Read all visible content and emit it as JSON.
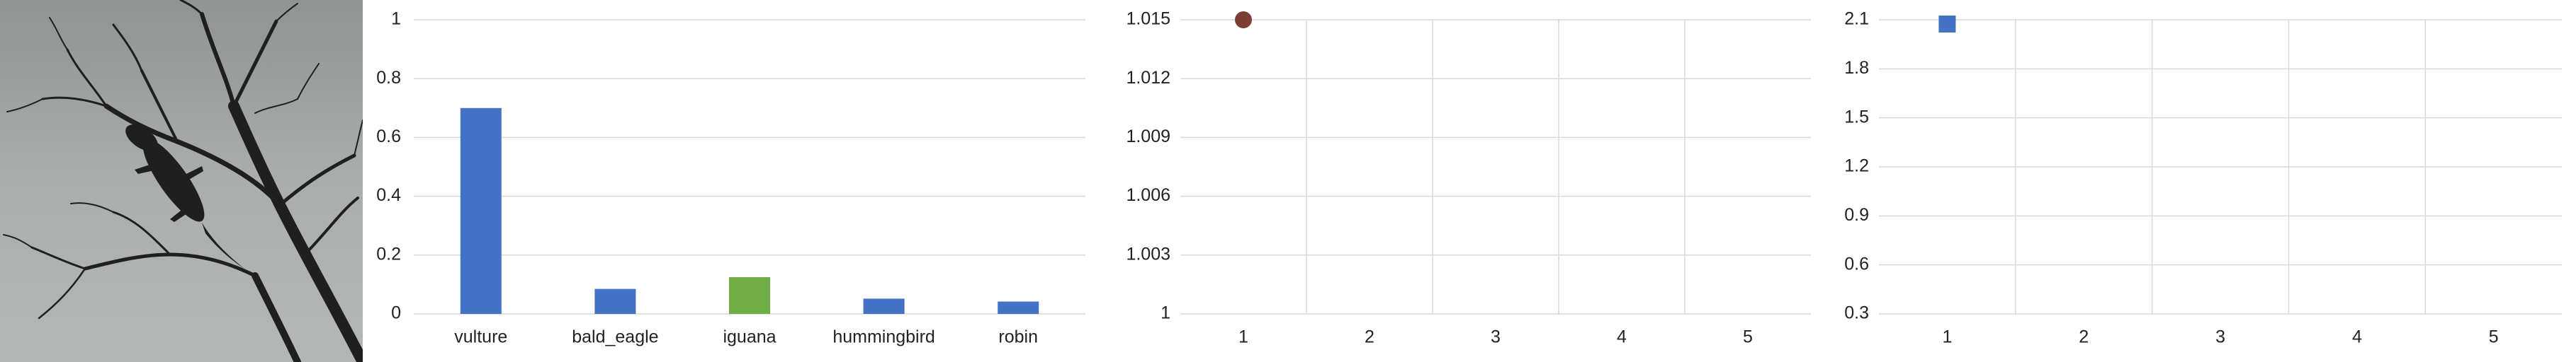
{
  "photo": {
    "subject": "iguana silhouette on bare tree branches against gray sky",
    "sky_color": "#a9adac",
    "branch_color": "#1e1f1e"
  },
  "chart_data": [
    {
      "type": "bar",
      "categories": [
        "vulture",
        "bald_eagle",
        "iguana",
        "hummingbird",
        "robin"
      ],
      "values": [
        0.7,
        0.085,
        0.125,
        0.052,
        0.042
      ],
      "colors": [
        "#4472c4",
        "#4472c4",
        "#70ad47",
        "#4472c4",
        "#4472c4"
      ],
      "yticks": [
        "0",
        "0.2",
        "0.4",
        "0.6",
        "0.8",
        "1"
      ],
      "ylim": [
        0,
        1
      ],
      "grid": "horizontal",
      "title": "",
      "xlabel": "",
      "ylabel": ""
    },
    {
      "type": "scatter",
      "x_categories": [
        "1",
        "2",
        "3",
        "4",
        "5"
      ],
      "yticks": [
        "1",
        "1.003",
        "1.006",
        "1.009",
        "1.012",
        "1.015"
      ],
      "ylim": [
        1,
        1.015
      ],
      "points": [
        {
          "x": 1,
          "y": 1.015
        }
      ],
      "marker": "circle",
      "marker_color": "#7b3f35",
      "grid": "both",
      "title": "",
      "xlabel": "",
      "ylabel": ""
    },
    {
      "type": "scatter",
      "x_categories": [
        "1",
        "2",
        "3",
        "4",
        "5"
      ],
      "yticks": [
        "0.3",
        "0.6",
        "0.9",
        "1.2",
        "1.5",
        "1.8",
        "2.1"
      ],
      "ylim": [
        0.3,
        2.1
      ],
      "points": [
        {
          "x": 1,
          "y": 2.1
        }
      ],
      "marker": "square",
      "marker_color": "#4472c4",
      "grid": "both",
      "title": "",
      "xlabel": "",
      "ylabel": ""
    }
  ]
}
